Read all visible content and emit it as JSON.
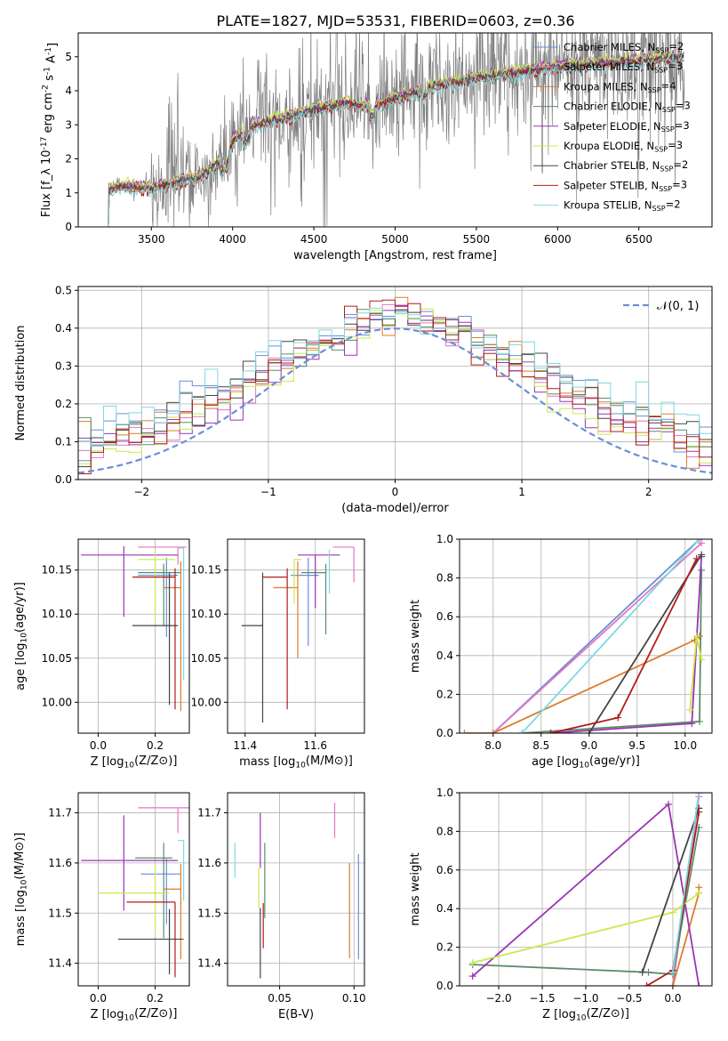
{
  "figure_title": "PLATE=1827, MJD=53531, FIBERID=0603, z=0.36",
  "legend_entries": [
    {
      "label": "Chabrier MILES, N_{SSP}=2",
      "color": "#6a8fd6"
    },
    {
      "label": "Salpeter MILES, N_{SSP}=3",
      "color": "#e377c2"
    },
    {
      "label": "Kroupa MILES, N_{SSP}=4",
      "color": "#dd7c2e"
    },
    {
      "label": "Chabrier ELODIE, N_{SSP}=3",
      "color": "#5b8c6a"
    },
    {
      "label": "Salpeter ELODIE, N_{SSP}=3",
      "color": "#9b34b5"
    },
    {
      "label": "Kroupa ELODIE, N_{SSP}=3",
      "color": "#cbe84e"
    },
    {
      "label": "Chabrier STELIB, N_{SSP}=2",
      "color": "#444444"
    },
    {
      "label": "Salpeter STELIB, N_{SSP}=3",
      "color": "#b01b1b"
    },
    {
      "label": "Kroupa STELIB, N_{SSP}=2",
      "color": "#7fd8e0"
    }
  ],
  "chart_data": [
    {
      "id": "spectrum",
      "type": "line",
      "title": "PLATE=1827, MJD=53531, FIBERID=0603, z=0.36",
      "xlabel": "wavelength [Angstrom, rest frame]",
      "ylabel": "Flux [f_λ 10^{-17} erg cm^{-2} s^{-1} A^{-1}]",
      "xlim": [
        3050,
        6950
      ],
      "ylim": [
        0,
        5.7
      ],
      "xticks": [
        3500,
        4000,
        4500,
        5000,
        5500,
        6000,
        6500
      ],
      "yticks": [
        0,
        1,
        2,
        3,
        4,
        5
      ],
      "legend_position": "upper right",
      "grid": false,
      "data_color": "#808080",
      "data_range": [
        3210,
        6780
      ],
      "model_anchor_x": [
        3210,
        3300,
        3500,
        3650,
        3800,
        3950,
        4000,
        4100,
        4300,
        4500,
        4700,
        4850,
        5000,
        5200,
        5400,
        5600,
        5800,
        6000,
        6200,
        6400,
        6600,
        6780
      ],
      "model_anchor_y": [
        1.05,
        1.2,
        1.15,
        1.3,
        1.5,
        2.0,
        2.5,
        2.95,
        3.2,
        3.45,
        3.65,
        3.55,
        3.75,
        4.1,
        4.3,
        4.45,
        4.6,
        4.7,
        4.8,
        4.85,
        4.95,
        5.0
      ]
    },
    {
      "id": "residuals",
      "type": "histogram",
      "xlabel": "(data-model)/error",
      "ylabel": "Normed distribution",
      "xlim": [
        -2.5,
        2.5
      ],
      "ylim": [
        0,
        0.51
      ],
      "xticks": [
        -2,
        -1,
        0,
        1,
        2
      ],
      "yticks": [
        0.0,
        0.1,
        0.2,
        0.3,
        0.4,
        0.5
      ],
      "grid": true,
      "legend_position": "upper right",
      "reference_curve": {
        "label": "𝒩(0, 1)",
        "mean": 0,
        "sigma": 1,
        "color": "#6a8fd6"
      },
      "bin_edges_start": -2.5,
      "bin_width": 0.1,
      "n_bins": 50
    },
    {
      "id": "age_vs_Z",
      "type": "errorbar",
      "xlabel": "Z [log10(Z/Z⊙)]",
      "ylabel": "age [log10(age/yr)]",
      "xlim": [
        -0.07,
        0.32
      ],
      "ylim": [
        9.965,
        10.185
      ],
      "xticks": [
        0.0,
        0.2
      ],
      "yticks": [
        10.0,
        10.05,
        10.1,
        10.15
      ],
      "grid": true,
      "points": [
        {
          "x": 0.24,
          "y": 10.144,
          "xerr": [
            0.1,
            0.04
          ],
          "yerr": [
            0.07,
            0.02
          ],
          "color": 0
        },
        {
          "x": 0.28,
          "y": 10.176,
          "xerr": [
            0.14,
            0.03
          ],
          "yerr": [
            0.02,
            0.0
          ],
          "color": 1
        },
        {
          "x": 0.29,
          "y": 10.13,
          "xerr": [
            0.06,
            0.0
          ],
          "yerr": [
            0.14,
            0.03
          ],
          "color": 2
        },
        {
          "x": 0.23,
          "y": 10.147,
          "xerr": [
            0.09,
            0.06
          ],
          "yerr": [
            0.06,
            0.01
          ],
          "color": 3
        },
        {
          "x": 0.09,
          "y": 10.167,
          "xerr": [
            0.15,
            0.19
          ],
          "yerr": [
            0.07,
            0.01
          ],
          "color": 4
        },
        {
          "x": 0.2,
          "y": 10.162,
          "xerr": [
            0.06,
            0.07
          ],
          "yerr": [
            0.07,
            0.01
          ],
          "color": 5
        },
        {
          "x": 0.25,
          "y": 10.087,
          "xerr": [
            0.13,
            0.03
          ],
          "yerr": [
            0.09,
            0.06
          ],
          "color": 6
        },
        {
          "x": 0.27,
          "y": 10.142,
          "xerr": [
            0.15,
            0.0
          ],
          "yerr": [
            0.15,
            0.01
          ],
          "color": 7
        },
        {
          "x": 0.3,
          "y": 10.175,
          "xerr": [
            0.02,
            0.0
          ],
          "yerr": [
            0.15,
            0.0
          ],
          "color": 8
        }
      ]
    },
    {
      "id": "age_vs_mass",
      "type": "errorbar",
      "xlabel": "mass [log10(M/M⊙)]",
      "ylabel": "",
      "xlim": [
        11.35,
        11.74
      ],
      "ylim": [
        9.965,
        10.185
      ],
      "xticks": [
        11.4,
        11.6
      ],
      "yticks": [
        10.0,
        10.05,
        10.1,
        10.15
      ],
      "grid": true,
      "points": [
        {
          "x": 11.58,
          "y": 10.144,
          "xerr": [
            0.05,
            0.03
          ],
          "yerr": [
            0.08,
            0.02
          ],
          "color": 0
        },
        {
          "x": 11.71,
          "y": 10.176,
          "xerr": [
            0.06,
            0.0
          ],
          "yerr": [
            0.04,
            0.0
          ],
          "color": 1
        },
        {
          "x": 11.55,
          "y": 10.13,
          "xerr": [
            0.07,
            0.0
          ],
          "yerr": [
            0.08,
            0.03
          ],
          "color": 2
        },
        {
          "x": 11.63,
          "y": 10.147,
          "xerr": [
            0.07,
            0.0
          ],
          "yerr": [
            0.07,
            0.01
          ],
          "color": 3
        },
        {
          "x": 11.6,
          "y": 10.167,
          "xerr": [
            0.05,
            0.07
          ],
          "yerr": [
            0.06,
            0.0
          ],
          "color": 4
        },
        {
          "x": 11.54,
          "y": 10.162,
          "xerr": [
            0.0,
            0.02
          ],
          "yerr": [
            0.05,
            0.0
          ],
          "color": 5
        },
        {
          "x": 11.45,
          "y": 10.087,
          "xerr": [
            0.06,
            0.0
          ],
          "yerr": [
            0.11,
            0.06
          ],
          "color": 6
        },
        {
          "x": 11.52,
          "y": 10.142,
          "xerr": [
            0.07,
            0.0
          ],
          "yerr": [
            0.15,
            0.01
          ],
          "color": 7
        },
        {
          "x": 11.64,
          "y": 10.163,
          "xerr": [
            0.0,
            0.0
          ],
          "yerr": [
            0.04,
            0.01
          ],
          "color": 8
        }
      ]
    },
    {
      "id": "massweight_vs_age",
      "type": "line",
      "xlabel": "age [log10(age/yr)]",
      "ylabel": "mass weight",
      "xlim": [
        7.65,
        10.28
      ],
      "ylim": [
        0.0,
        1.0
      ],
      "xticks": [
        8.0,
        8.5,
        9.0,
        9.5,
        10.0
      ],
      "yticks": [
        0.0,
        0.2,
        0.4,
        0.6,
        0.8,
        1.0
      ],
      "grid": true,
      "series": [
        {
          "x": [
            8.0,
            10.15
          ],
          "y": [
            0.0,
            1.0
          ],
          "color": 0
        },
        {
          "x": [
            8.0,
            10.17
          ],
          "y": [
            0.0,
            0.98
          ],
          "color": 1
        },
        {
          "x": [
            7.7,
            8.0,
            10.1,
            10.15
          ],
          "y": [
            0.0,
            0.0,
            0.48,
            0.5
          ],
          "color": 2
        },
        {
          "x": [
            8.3,
            10.15,
            10.17
          ],
          "y": [
            0.0,
            0.06,
            0.84
          ],
          "color": 3
        },
        {
          "x": [
            8.6,
            10.07,
            10.17
          ],
          "y": [
            0.0,
            0.05,
            0.91
          ],
          "color": 4
        },
        {
          "x": [
            10.05,
            10.12,
            10.17
          ],
          "y": [
            0.12,
            0.5,
            0.38
          ],
          "color": 5
        },
        {
          "x": [
            9.0,
            10.17
          ],
          "y": [
            0.0,
            0.92
          ],
          "color": 6
        },
        {
          "x": [
            8.6,
            9.3,
            10.12
          ],
          "y": [
            0.0,
            0.08,
            0.9
          ],
          "color": 7
        },
        {
          "x": [
            8.3,
            10.15
          ],
          "y": [
            0.0,
            1.0
          ],
          "color": 8
        }
      ]
    },
    {
      "id": "mass_vs_Z",
      "type": "errorbar",
      "xlabel": "Z [log10(Z/Z⊙)]",
      "ylabel": "mass [log10(M/M⊙)]",
      "xlim": [
        -0.07,
        0.32
      ],
      "ylim": [
        11.355,
        11.74
      ],
      "xticks": [
        0.0,
        0.2
      ],
      "yticks": [
        11.4,
        11.5,
        11.6,
        11.7
      ],
      "grid": true,
      "points": [
        {
          "x": 0.24,
          "y": 11.578,
          "xerr": [
            0.09,
            0.05
          ],
          "yerr": [
            0.1,
            0.03
          ],
          "color": 0
        },
        {
          "x": 0.28,
          "y": 11.71,
          "xerr": [
            0.14,
            0.04
          ],
          "yerr": [
            0.05,
            0.0
          ],
          "color": 1
        },
        {
          "x": 0.29,
          "y": 11.548,
          "xerr": [
            0.06,
            0.0
          ],
          "yerr": [
            0.14,
            0.05
          ],
          "color": 2
        },
        {
          "x": 0.23,
          "y": 11.61,
          "xerr": [
            0.1,
            0.03
          ],
          "yerr": [
            0.16,
            0.03
          ],
          "color": 3
        },
        {
          "x": 0.09,
          "y": 11.605,
          "xerr": [
            0.15,
            0.19
          ],
          "yerr": [
            0.1,
            0.09
          ],
          "color": 4
        },
        {
          "x": 0.2,
          "y": 11.54,
          "xerr": [
            0.2,
            0.05
          ],
          "yerr": [
            0.08,
            0.06
          ],
          "color": 5
        },
        {
          "x": 0.25,
          "y": 11.448,
          "xerr": [
            0.18,
            0.05
          ],
          "yerr": [
            0.07,
            0.06
          ],
          "color": 6
        },
        {
          "x": 0.27,
          "y": 11.522,
          "xerr": [
            0.17,
            0.0
          ],
          "yerr": [
            0.15,
            0.0
          ],
          "color": 7
        },
        {
          "x": 0.3,
          "y": 11.645,
          "xerr": [
            0.02,
            0.0
          ],
          "yerr": [
            0.12,
            0.0
          ],
          "color": 8
        }
      ]
    },
    {
      "id": "mass_vs_EBV",
      "type": "errorbar",
      "xlabel": "E(B-V)",
      "ylabel": "",
      "xlim": [
        0.015,
        0.107
      ],
      "ylim": [
        11.355,
        11.74
      ],
      "xticks": [
        0.05,
        0.1
      ],
      "yticks": [
        11.4,
        11.5,
        11.6,
        11.7
      ],
      "grid": true,
      "points": [
        {
          "x": 0.103,
          "y": 11.578,
          "xerr": [
            0.0,
            0.0
          ],
          "yerr": [
            0.17,
            0.04
          ],
          "color": 0
        },
        {
          "x": 0.087,
          "y": 11.7,
          "xerr": [
            0.0,
            0.0
          ],
          "yerr": [
            0.05,
            0.02
          ],
          "color": 1
        },
        {
          "x": 0.097,
          "y": 11.53,
          "xerr": [
            0.0,
            0.0
          ],
          "yerr": [
            0.12,
            0.07
          ],
          "color": 2
        },
        {
          "x": 0.04,
          "y": 11.61,
          "xerr": [
            0.0,
            0.0
          ],
          "yerr": [
            0.12,
            0.03
          ],
          "color": 3
        },
        {
          "x": 0.037,
          "y": 11.66,
          "xerr": [
            0.0,
            0.0
          ],
          "yerr": [
            0.07,
            0.04
          ],
          "color": 4
        },
        {
          "x": 0.036,
          "y": 11.55,
          "xerr": [
            0.0,
            0.0
          ],
          "yerr": [
            0.04,
            0.04
          ],
          "color": 5
        },
        {
          "x": 0.037,
          "y": 11.45,
          "xerr": [
            0.0,
            0.0
          ],
          "yerr": [
            0.08,
            0.06
          ],
          "color": 6
        },
        {
          "x": 0.039,
          "y": 11.48,
          "xerr": [
            0.0,
            0.0
          ],
          "yerr": [
            0.05,
            0.04
          ],
          "color": 7
        },
        {
          "x": 0.02,
          "y": 11.6,
          "xerr": [
            0.0,
            0.0
          ],
          "yerr": [
            0.03,
            0.04
          ],
          "color": 8
        }
      ]
    },
    {
      "id": "massweight_vs_Z",
      "type": "line",
      "xlabel": "Z [log10(Z/Z⊙)]",
      "ylabel": "mass weight",
      "xlim": [
        -2.45,
        0.45
      ],
      "ylim": [
        0.0,
        1.0
      ],
      "xticks": [
        -2.0,
        -1.5,
        -1.0,
        -0.5,
        0.0
      ],
      "yticks": [
        0.0,
        0.2,
        0.4,
        0.6,
        0.8,
        1.0
      ],
      "grid": true,
      "series": [
        {
          "x": [
            0.0,
            0.3
          ],
          "y": [
            0.0,
            1.0
          ],
          "color": 0
        },
        {
          "x": [
            0.0,
            0.3
          ],
          "y": [
            0.0,
            0.98
          ],
          "color": 1
        },
        {
          "x": [
            -0.3,
            0.0,
            0.3,
            0.3
          ],
          "y": [
            0.0,
            0.0,
            0.48,
            0.51
          ],
          "color": 2
        },
        {
          "x": [
            -2.3,
            -0.28,
            0.0,
            0.3
          ],
          "y": [
            0.11,
            0.07,
            0.06,
            0.82
          ],
          "color": 3
        },
        {
          "x": [
            -2.3,
            -0.05,
            0.3
          ],
          "y": [
            0.05,
            0.94,
            0.0
          ],
          "color": 4
        },
        {
          "x": [
            -2.3,
            0.0,
            0.3
          ],
          "y": [
            0.12,
            0.38,
            0.48
          ],
          "color": 5
        },
        {
          "x": [
            -0.35,
            0.3
          ],
          "y": [
            0.07,
            0.92
          ],
          "color": 6
        },
        {
          "x": [
            -0.3,
            0.0,
            0.3
          ],
          "y": [
            0.0,
            0.08,
            0.9
          ],
          "color": 7
        },
        {
          "x": [
            0.0,
            0.3
          ],
          "y": [
            0.07,
            1.0
          ],
          "color": 8
        }
      ]
    }
  ]
}
